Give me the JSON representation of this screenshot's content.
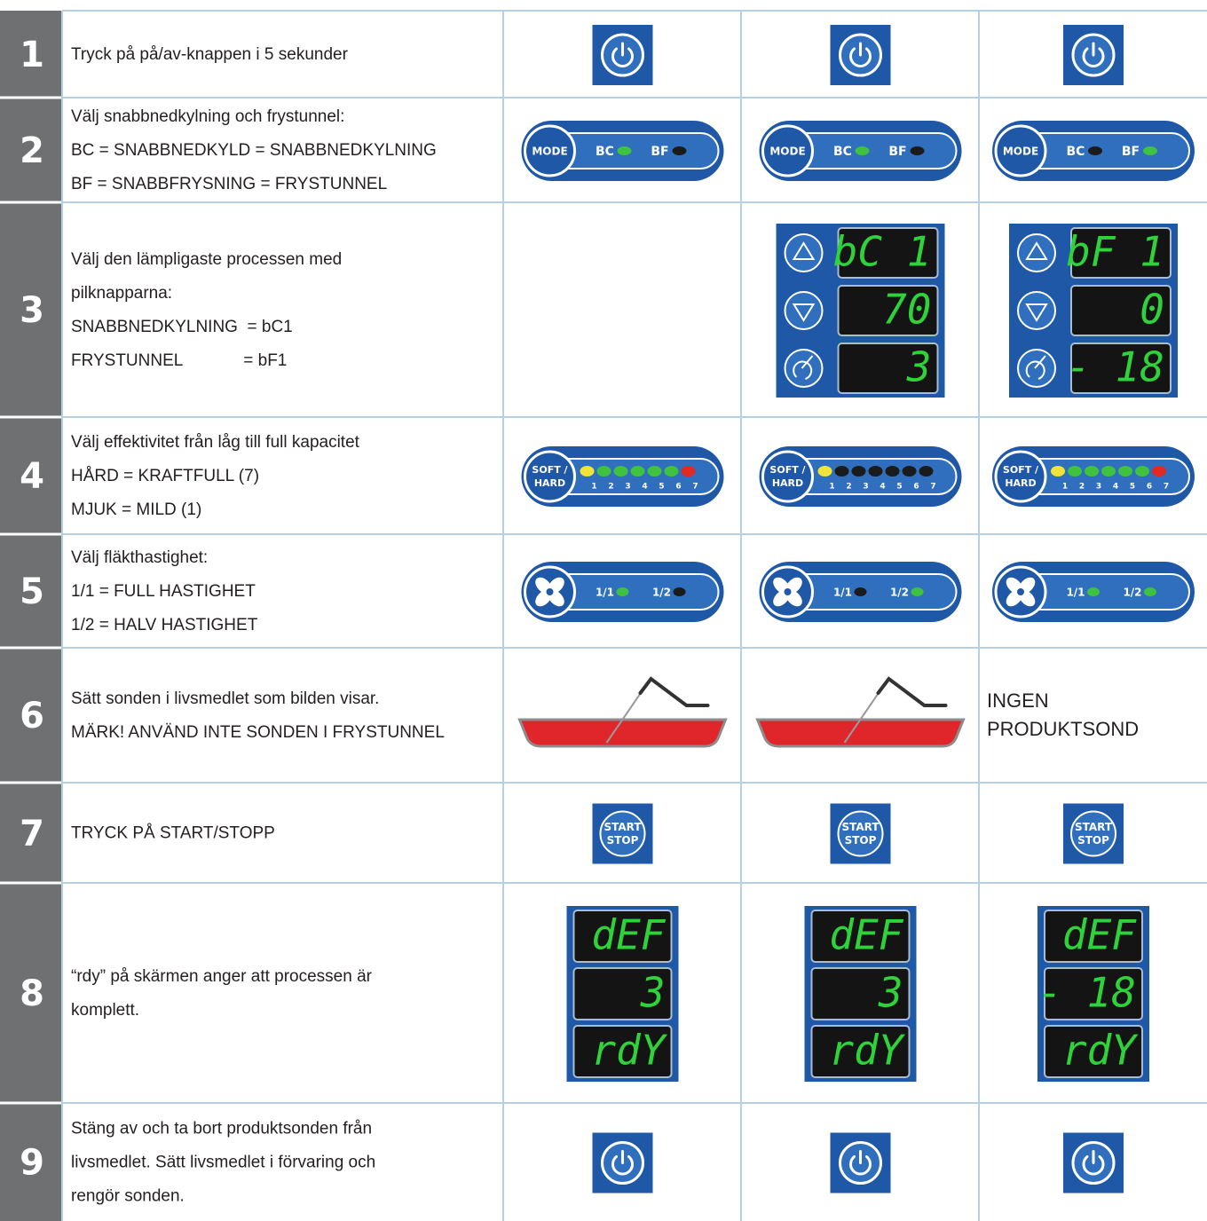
{
  "steps": [
    {
      "number": "1",
      "lines": [
        "Tryck på på/av-knappen i 5 sekunder"
      ],
      "cells": [
        {
          "icon": "power"
        },
        {
          "icon": "power"
        },
        {
          "icon": "power"
        }
      ]
    },
    {
      "number": "2",
      "lines": [
        "Välj snabbnedkylning och frystunnel:",
        "BC = SNABBNEDKYLD = SNABBNEDKYLNING",
        "BF = SNABBFRYSNING = FRYSTUNNEL"
      ],
      "cells": [
        {
          "icon": "mode",
          "button": [
            "MODE"
          ],
          "labels": [
            "BC",
            "BF"
          ],
          "leds": [
            "#3fc23f",
            "#1b1b1b"
          ]
        },
        {
          "icon": "mode",
          "button": [
            "MODE"
          ],
          "labels": [
            "BC",
            "BF"
          ],
          "leds": [
            "#3fc23f",
            "#1b1b1b"
          ]
        },
        {
          "icon": "mode",
          "button": [
            "MODE"
          ],
          "labels": [
            "BC",
            "BF"
          ],
          "leds": [
            "#1b1b1b",
            "#3fc23f"
          ]
        }
      ]
    },
    {
      "number": "3",
      "lines": [
        "Välj den lämpligaste processen med",
        "pilknapparna:",
        "SNABBNEDKYLNING  = bC1",
        "FRYSTUNNEL             = bF1"
      ],
      "cells": [
        null,
        {
          "icon": "display-buttons",
          "screens": [
            "bC 1",
            "70",
            "3"
          ]
        },
        {
          "icon": "display-buttons",
          "screens": [
            "bF 1",
            "0",
            "- 18"
          ]
        }
      ]
    },
    {
      "number": "4",
      "lines": [
        "Välj effektivitet från låg till full kapacitet",
        "HÅRD = KRAFTFULL (7)",
        "MJUK = MILD (1)"
      ],
      "cells": [
        {
          "icon": "level",
          "button": [
            "SOFT /",
            "HARD"
          ],
          "scale": [
            "1",
            "2",
            "3",
            "4",
            "5",
            "6",
            "7"
          ],
          "leds": [
            "#f2e33a",
            "#3fc23f",
            "#3fc23f",
            "#3fc23f",
            "#3fc23f",
            "#3fc23f",
            "#e02a22"
          ]
        },
        {
          "icon": "level",
          "button": [
            "SOFT /",
            "HARD"
          ],
          "scale": [
            "1",
            "2",
            "3",
            "4",
            "5",
            "6",
            "7"
          ],
          "leds": [
            "#f2e33a",
            "#1b1b1b",
            "#1b1b1b",
            "#1b1b1b",
            "#1b1b1b",
            "#1b1b1b",
            "#1b1b1b"
          ]
        },
        {
          "icon": "level",
          "button": [
            "SOFT /",
            "HARD"
          ],
          "scale": [
            "1",
            "2",
            "3",
            "4",
            "5",
            "6",
            "7"
          ],
          "leds": [
            "#f2e33a",
            "#3fc23f",
            "#3fc23f",
            "#3fc23f",
            "#3fc23f",
            "#3fc23f",
            "#e02a22"
          ]
        }
      ]
    },
    {
      "number": "5",
      "lines": [
        "Välj fläkthastighet:",
        "1/1 = FULL HASTIGHET",
        "1/2 = HALV HASTIGHET"
      ],
      "cells": [
        {
          "icon": "fan",
          "labels": [
            "1/1",
            "1/2"
          ],
          "leds": [
            "#3fc23f",
            "#1b1b1b"
          ]
        },
        {
          "icon": "fan",
          "labels": [
            "1/1",
            "1/2"
          ],
          "leds": [
            "#1b1b1b",
            "#3fc23f"
          ]
        },
        {
          "icon": "fan",
          "labels": [
            "1/1",
            "1/2"
          ],
          "leds": [
            "#3fc23f",
            "#3fc23f"
          ]
        }
      ]
    },
    {
      "number": "6",
      "lines": [
        "Sätt sonden i livsmedlet som bilden visar.",
        "MÄRK! ANVÄND INTE SONDEN I FRYSTUNNEL"
      ],
      "cells": [
        {
          "icon": "probe"
        },
        {
          "icon": "probe"
        },
        {
          "icon": "text",
          "lines": [
            "INGEN",
            "PRODUKTSOND"
          ]
        }
      ]
    },
    {
      "number": "7",
      "lines": [
        "TRYCK PÅ START/STOPP"
      ],
      "cells": [
        {
          "icon": "start",
          "button": [
            "START",
            "STOP"
          ]
        },
        {
          "icon": "start",
          "button": [
            "START",
            "STOP"
          ]
        },
        {
          "icon": "start",
          "button": [
            "START",
            "STOP"
          ]
        }
      ]
    },
    {
      "number": "8",
      "lines": [
        "“rdy” på skärmen anger att processen är",
        "komplett."
      ],
      "cells": [
        {
          "icon": "display",
          "screens": [
            "dEF",
            "3",
            "rdY"
          ]
        },
        {
          "icon": "display",
          "screens": [
            "dEF",
            "3",
            "rdY"
          ]
        },
        {
          "icon": "display",
          "screens": [
            "dEF",
            "- 18",
            "rdY"
          ]
        }
      ]
    },
    {
      "number": "9",
      "lines": [
        "Stäng av och ta bort produktsonden från",
        "livsmedlet. Sätt livsmedlet i förvaring och",
        "rengör sonden."
      ],
      "cells": [
        {
          "icon": "power"
        },
        {
          "icon": "power"
        },
        {
          "icon": "power"
        }
      ]
    }
  ]
}
